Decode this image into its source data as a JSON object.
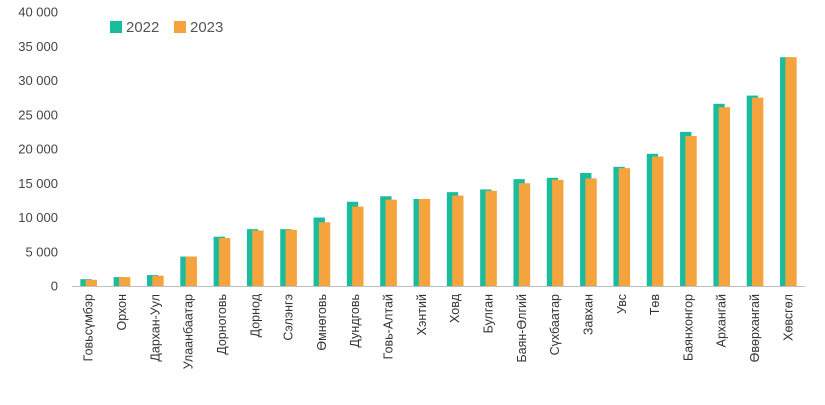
{
  "chart_data": {
    "type": "bar",
    "title": "",
    "xlabel": "",
    "ylabel": "",
    "ylim": [
      0,
      40000
    ],
    "yticks": [
      0,
      5000,
      10000,
      15000,
      20000,
      25000,
      30000,
      35000,
      40000
    ],
    "ytick_labels": [
      "0",
      "5 000",
      "10 000",
      "15 000",
      "20 000",
      "25 000",
      "30 000",
      "35 000",
      "40 000"
    ],
    "grid": false,
    "legend_position": "top-left",
    "categories": [
      "Говьсүмбэр",
      "Орхон",
      "Дархан-Уул",
      "Улаанбаатар",
      "Дорноговь",
      "Дорнод",
      "Сэлэнгэ",
      "Өмнөговь",
      "Дундговь",
      "Говь-Алтай",
      "Хэнтий",
      "Ховд",
      "Булган",
      "Баян-Өлгий",
      "Сүхбаатар",
      "Завхан",
      "Увс",
      "Төв",
      "Баянхонгор",
      "Архангай",
      "Өвөрхангай",
      "Хөвсгөл"
    ],
    "series": [
      {
        "name": "2022",
        "color": "#1ABC9C",
        "values": [
          1000,
          1300,
          1600,
          4300,
          7200,
          8300,
          8300,
          10000,
          12300,
          13100,
          12700,
          13700,
          14100,
          15600,
          15800,
          16500,
          17400,
          19300,
          22500,
          26600,
          27800,
          33400
        ]
      },
      {
        "name": "2023",
        "color": "#F5A33C",
        "values": [
          900,
          1300,
          1500,
          4300,
          7000,
          8100,
          8200,
          9300,
          11600,
          12600,
          12700,
          13200,
          13900,
          15000,
          15500,
          15700,
          17200,
          18900,
          21900,
          26100,
          27500,
          33400
        ]
      }
    ]
  }
}
